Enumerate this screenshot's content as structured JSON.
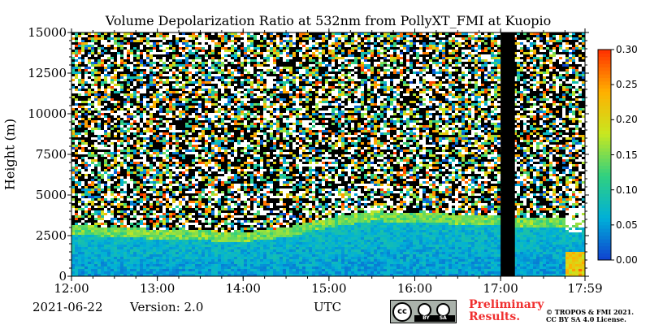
{
  "chart_data": {
    "type": "heatmap",
    "title": "Volume Depolarization Ratio at 532nm from PollyXT_FMI at Kuopio",
    "ylabel": "Height (m)",
    "xlabel": "UTC",
    "x_range": [
      "12:00",
      "17:59"
    ],
    "ylim": [
      0,
      15000
    ],
    "x_ticks": [
      "12:00",
      "13:00",
      "14:00",
      "15:00",
      "16:00",
      "17:00",
      "17:59"
    ],
    "y_ticks": [
      "0",
      "2500",
      "5000",
      "7500",
      "10000",
      "12500",
      "15000"
    ],
    "colorbar": {
      "range": [
        0.0,
        0.3
      ],
      "ticks": [
        "0.00",
        "0.05",
        "0.10",
        "0.15",
        "0.20",
        "0.25",
        "0.30"
      ],
      "colors": [
        "#1040d0",
        "#00b0d8",
        "#30d080",
        "#c8e820",
        "#ffb000",
        "#ff3000"
      ]
    },
    "features": {
      "boundary_layer_top_m": [
        3200,
        3000,
        2800,
        2700,
        3000,
        3600,
        4000,
        3800,
        3600
      ],
      "boundary_layer_top_x": [
        "12:00",
        "12:30",
        "13:30",
        "14:00",
        "14:30",
        "15:00",
        "15:30",
        "16:30",
        "17:30"
      ],
      "data_gap": {
        "start": "17:00",
        "end": "17:10",
        "color": "#000000"
      },
      "high_depol_patch": {
        "start": "17:45",
        "end": "17:59",
        "height_range_m": [
          2700,
          4200
        ]
      }
    },
    "grid": false
  },
  "footer": {
    "date": "2021-06-22",
    "version": "Version: 2.0",
    "time_label": "UTC",
    "status_line1": "Preliminary",
    "status_line2": "Results.",
    "copyright1": "© TROPOS & FMI 2021.",
    "copyright2": "CC BY SA 4.0 License.",
    "badge_text": "BY SA"
  }
}
